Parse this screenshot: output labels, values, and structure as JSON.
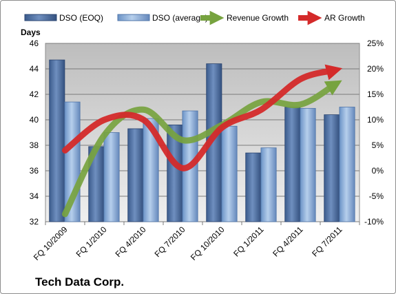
{
  "chart_data": {
    "type": "bar",
    "title": "Tech Data Corp.",
    "ylabel": "Days",
    "categories": [
      "FQ 10/2009",
      "FQ 1/2010",
      "FQ 4/2010",
      "FQ 7/2010",
      "FQ 10/2010",
      "FQ 1/2011",
      "FQ 4/2011",
      "FQ 7/2011"
    ],
    "ylim": [
      32,
      46
    ],
    "yticks": [
      32,
      34,
      36,
      38,
      40,
      42,
      44,
      46
    ],
    "y2lim": [
      -10,
      25
    ],
    "y2ticks": [
      "-10%",
      "-5%",
      "0%",
      "5%",
      "10%",
      "15%",
      "20%",
      "25%"
    ],
    "y2ticks_values": [
      -10,
      -5,
      0,
      5,
      10,
      15,
      20,
      25
    ],
    "series": [
      {
        "name": "DSO (EOQ)",
        "type": "bar",
        "axis": "left",
        "color": "#4a6fa5",
        "values": [
          44.7,
          37.9,
          39.3,
          39.6,
          44.4,
          37.4,
          41.0,
          40.4
        ]
      },
      {
        "name": "DSO (average)",
        "type": "bar",
        "axis": "left",
        "color": "#7fa6d6",
        "values": [
          41.4,
          39.0,
          40.1,
          40.7,
          39.5,
          37.8,
          40.9,
          41.0
        ]
      },
      {
        "name": "Revenue Growth",
        "type": "line",
        "axis": "right",
        "color": "#77a33f",
        "values": [
          -8.5,
          7.0,
          12.0,
          6.0,
          9.0,
          13.5,
          13.0,
          17.5
        ]
      },
      {
        "name": "AR Growth",
        "type": "line",
        "axis": "right",
        "color": "#d42a2a",
        "values": [
          4.0,
          10.0,
          10.0,
          0.5,
          8.5,
          12.0,
          18.0,
          20.0
        ]
      }
    ],
    "grid": true,
    "legend_position": "top"
  }
}
